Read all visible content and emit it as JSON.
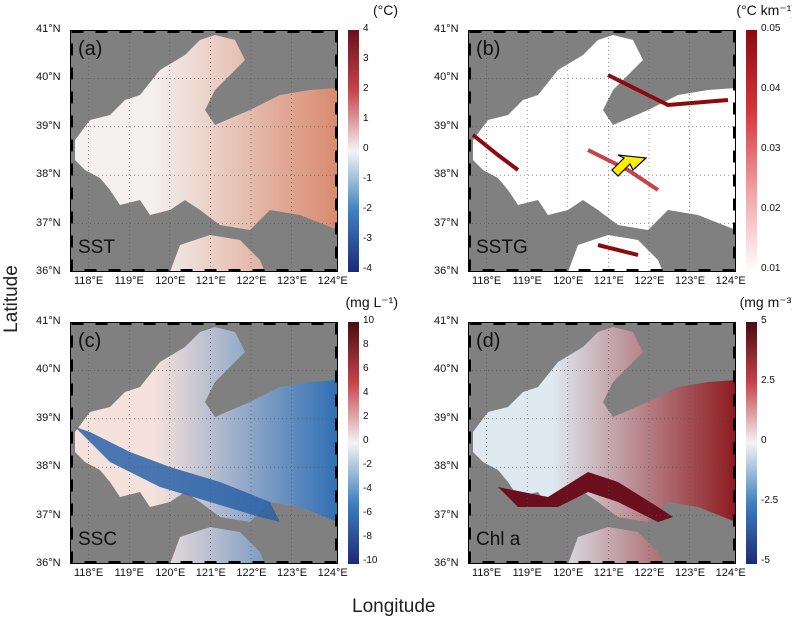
{
  "axes": {
    "xlabel": "Longitude",
    "ylabel": "Latitude"
  },
  "lon_ticks": [
    "118°E",
    "119°E",
    "120°E",
    "121°E",
    "122°E",
    "123°E",
    "124°E"
  ],
  "lat_ticks": [
    "41°N",
    "40°N",
    "39°N",
    "38°N",
    "37°N",
    "36°N"
  ],
  "panels": [
    {
      "tag": "(a)",
      "name": "SST",
      "unit": "(°C)",
      "cbar_ticks": [
        "4",
        "3",
        "2",
        "1",
        "0",
        "-1",
        "-2",
        "-3",
        "-4"
      ],
      "colors": [
        "#6b0f1f",
        "#c7434a",
        "#f4f4f4",
        "#3d7fbf",
        "#1c2a78"
      ],
      "water": [
        "#f3f0ef",
        "#d88a6f"
      ]
    },
    {
      "tag": "(b)",
      "name": "SSTG",
      "unit": "(°C km⁻¹)",
      "cbar_ticks": [
        "0.05",
        "0.04",
        "0.03",
        "0.02",
        "0.01"
      ],
      "colors": [
        "#8c0a0f",
        "#d5353c",
        "#f2a2a4",
        "#ffffff"
      ],
      "water": [
        "#ffffff",
        "#ffffff"
      ]
    },
    {
      "tag": "(c)",
      "name": "SSC",
      "unit": "(mg L⁻¹)",
      "cbar_ticks": [
        "10",
        "8",
        "6",
        "4",
        "2",
        "0",
        "-2",
        "-4",
        "-6",
        "-8",
        "-10"
      ],
      "colors": [
        "#4a0b12",
        "#c7434a",
        "#f4f4f4",
        "#3d7fbf",
        "#1c2a78"
      ],
      "water": [
        "#f6e2dc",
        "#2e6fb3"
      ]
    },
    {
      "tag": "(d)",
      "name": "Chl a",
      "unit": "(mg m⁻³)",
      "cbar_ticks": [
        "5",
        "2.5",
        "0",
        "-2.5",
        "-5"
      ],
      "colors": [
        "#4a0b12",
        "#c7434a",
        "#f4f4f4",
        "#3d7fbf",
        "#1c2a78"
      ],
      "water": [
        "#dfe9f0",
        "#8c1a1f"
      ]
    }
  ]
}
